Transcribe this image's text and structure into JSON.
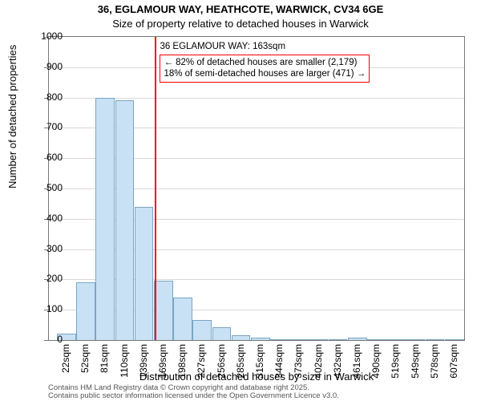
{
  "chart": {
    "type": "histogram",
    "title": "36, EGLAMOUR WAY, HEATHCOTE, WARWICK, CV34 6GE",
    "title_fontsize": 13,
    "subtitle": "Size of property relative to detached houses in Warwick",
    "subtitle_fontsize": 13,
    "xlabel": "Distribution of detached houses by size in Warwick",
    "ylabel": "Number of detached properties",
    "background_color": "#ffffff",
    "plot_border_color": "#777777",
    "grid_color": "#d9d9d9",
    "bar_fill": "#c9e1f5",
    "bar_stroke": "#7aa6c2",
    "ylim": [
      0,
      1000
    ],
    "ytick_step": 100,
    "x_ticklabels": [
      "22sqm",
      "52sqm",
      "81sqm",
      "110sqm",
      "139sqm",
      "169sqm",
      "198sqm",
      "227sqm",
      "256sqm",
      "285sqm",
      "315sqm",
      "344sqm",
      "373sqm",
      "402sqm",
      "432sqm",
      "461sqm",
      "490sqm",
      "519sqm",
      "549sqm",
      "578sqm",
      "607sqm"
    ],
    "values": [
      20,
      190,
      800,
      790,
      440,
      195,
      140,
      65,
      42,
      15,
      8,
      4,
      3,
      2,
      2,
      8,
      2,
      0,
      0,
      0,
      0
    ],
    "tick_fontsize": 12,
    "marker": {
      "label": "36 EGLAMOUR WAY: 163sqm",
      "value_sqm": 163,
      "line_color": "#ff0000",
      "line_width": 2
    },
    "annotation": {
      "line1": "← 82% of detached houses are smaller (2,179)",
      "line2": "18% of semi-detached houses are larger (471) →",
      "border_color": "#ff0000",
      "background": "#ffffff"
    },
    "footer_line1": "Contains HM Land Registry data © Crown copyright and database right 2025.",
    "footer_line2": "Contains public sector information licensed under the Open Government Licence v3.0."
  }
}
